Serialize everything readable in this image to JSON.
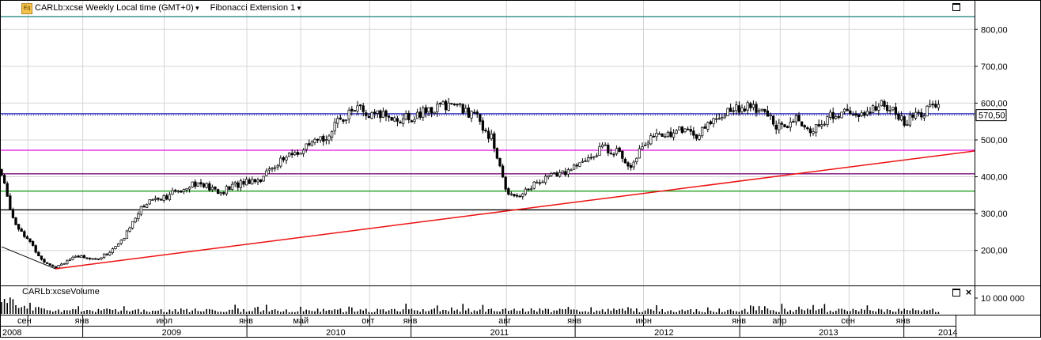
{
  "header": {
    "symbol_title": "CARLb:xcse Weekly Local time (GMT+0)",
    "indicator": "Fibonacci Extension 1",
    "icon": "eq-icon"
  },
  "volume_pane": {
    "title": "CARLb:xcseVolume",
    "axis_label": "10 000 000"
  },
  "price_tag": "570,50",
  "colors": {
    "candle_up": "#ffffff",
    "candle_down": "#000000",
    "trend_line": "#ee1111",
    "fib_levels": [
      "#2a8a8a",
      "#1a1ab0",
      "#e010e0",
      "#7a0a7a",
      "#20a020",
      "#000000"
    ]
  },
  "chart_data": {
    "type": "candlestick",
    "title": "",
    "y_ticks": [
      "200,00",
      "300,00",
      "400,00",
      "500,00",
      "600,00",
      "700,00",
      "800,00"
    ],
    "ylim": [
      107,
      880
    ],
    "grid": true,
    "month_labels": [
      {
        "label": "сен",
        "date": "2008-09"
      },
      {
        "label": "янв",
        "date": "2009-01"
      },
      {
        "label": "июл",
        "date": "2009-07"
      },
      {
        "label": "янв",
        "date": "2010-01"
      },
      {
        "label": "май",
        "date": "2010-05"
      },
      {
        "label": "окт",
        "date": "2010-10"
      },
      {
        "label": "янв",
        "date": "2011-01"
      },
      {
        "label": "авг",
        "date": "2011-08"
      },
      {
        "label": "янв",
        "date": "2012-01"
      },
      {
        "label": "июн",
        "date": "2012-06"
      },
      {
        "label": "янв",
        "date": "2013-01"
      },
      {
        "label": "апр",
        "date": "2013-04"
      },
      {
        "label": "сен",
        "date": "2013-09"
      },
      {
        "label": "янв",
        "date": "2014-01"
      }
    ],
    "year_labels": [
      "2008",
      "2009",
      "2010",
      "2011",
      "2012",
      "2013",
      "2014"
    ],
    "fibonacci_levels": [
      835,
      571,
      472,
      408,
      361,
      310
    ],
    "trend_line": {
      "from": {
        "date": "2008-11",
        "price": 150
      },
      "to": {
        "date": "2014-03",
        "price": 470
      }
    },
    "close_path": [
      [
        "2008-07",
        420
      ],
      [
        "2008-08",
        280
      ],
      [
        "2008-09",
        230
      ],
      [
        "2008-10",
        175
      ],
      [
        "2008-11",
        155
      ],
      [
        "2008-12",
        175
      ],
      [
        "2009-01",
        185
      ],
      [
        "2009-02",
        175
      ],
      [
        "2009-03",
        195
      ],
      [
        "2009-04",
        230
      ],
      [
        "2009-05",
        300
      ],
      [
        "2009-06",
        340
      ],
      [
        "2009-07",
        345
      ],
      [
        "2009-08",
        360
      ],
      [
        "2009-09",
        385
      ],
      [
        "2009-10",
        375
      ],
      [
        "2009-11",
        355
      ],
      [
        "2009-12",
        375
      ],
      [
        "2010-01",
        390
      ],
      [
        "2010-02",
        395
      ],
      [
        "2010-03",
        430
      ],
      [
        "2010-04",
        455
      ],
      [
        "2010-05",
        470
      ],
      [
        "2010-06",
        490
      ],
      [
        "2010-07",
        515
      ],
      [
        "2010-08",
        560
      ],
      [
        "2010-09",
        590
      ],
      [
        "2010-10",
        560
      ],
      [
        "2010-11",
        570
      ],
      [
        "2010-12",
        555
      ],
      [
        "2011-01",
        560
      ],
      [
        "2011-02",
        575
      ],
      [
        "2011-03",
        590
      ],
      [
        "2011-04",
        600
      ],
      [
        "2011-05",
        580
      ],
      [
        "2011-06",
        555
      ],
      [
        "2011-07",
        500
      ],
      [
        "2011-08",
        360
      ],
      [
        "2011-09",
        350
      ],
      [
        "2011-10",
        380
      ],
      [
        "2011-11",
        400
      ],
      [
        "2011-12",
        410
      ],
      [
        "2012-01",
        425
      ],
      [
        "2012-02",
        450
      ],
      [
        "2012-03",
        480
      ],
      [
        "2012-04",
        470
      ],
      [
        "2012-05",
        430
      ],
      [
        "2012-06",
        490
      ],
      [
        "2012-07",
        510
      ],
      [
        "2012-08",
        520
      ],
      [
        "2012-09",
        530
      ],
      [
        "2012-10",
        510
      ],
      [
        "2012-11",
        555
      ],
      [
        "2012-12",
        575
      ],
      [
        "2013-01",
        590
      ],
      [
        "2013-02",
        585
      ],
      [
        "2013-03",
        570
      ],
      [
        "2013-04",
        530
      ],
      [
        "2013-05",
        560
      ],
      [
        "2013-06",
        520
      ],
      [
        "2013-07",
        545
      ],
      [
        "2013-08",
        570
      ],
      [
        "2013-09",
        575
      ],
      [
        "2013-10",
        560
      ],
      [
        "2013-11",
        595
      ],
      [
        "2013-12",
        590
      ],
      [
        "2014-01",
        545
      ],
      [
        "2014-02",
        570
      ],
      [
        "2014-03",
        585
      ]
    ]
  }
}
